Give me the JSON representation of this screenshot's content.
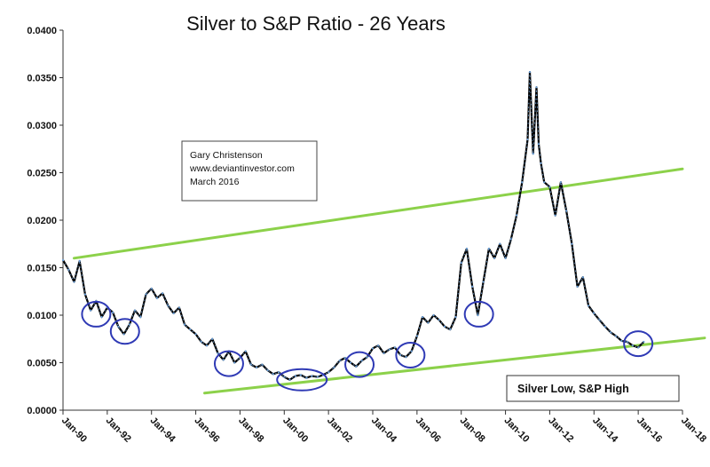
{
  "colors": {
    "series_line": "#000000",
    "series_highlight": "#6a9fd8",
    "trend_line": "#8cd14a",
    "circle": "#2f3ab5",
    "axis": "#333333"
  },
  "chart_data": {
    "type": "line",
    "title": "Silver to S&P Ratio - 26 Years",
    "xlabel": "",
    "ylabel": "",
    "ylim": [
      0,
      0.04
    ],
    "xlim": [
      1990,
      2018
    ],
    "grid": false,
    "legend": "none",
    "y_ticks": [
      "0.0000",
      "0.0050",
      "0.0100",
      "0.0150",
      "0.0200",
      "0.0250",
      "0.0300",
      "0.0350",
      "0.0400"
    ],
    "x_ticks": [
      {
        "label": "Jan-90",
        "x": 1990
      },
      {
        "label": "Jan-92",
        "x": 1992
      },
      {
        "label": "Jan-94",
        "x": 1994
      },
      {
        "label": "Jan-96",
        "x": 1996
      },
      {
        "label": "Jan-98",
        "x": 1998
      },
      {
        "label": "Jan-00",
        "x": 2000
      },
      {
        "label": "Jan-02",
        "x": 2002
      },
      {
        "label": "Jan-04",
        "x": 2004
      },
      {
        "label": "Jan-06",
        "x": 2006
      },
      {
        "label": "Jan-08",
        "x": 2008
      },
      {
        "label": "Jan-10",
        "x": 2010
      },
      {
        "label": "Jan-12",
        "x": 2012
      },
      {
        "label": "Jan-14",
        "x": 2014
      },
      {
        "label": "Jan-16",
        "x": 2016
      },
      {
        "label": "Jan-18",
        "x": 2018
      }
    ],
    "series": [
      {
        "name": "Silver to S&P Ratio",
        "x": [
          1990.0,
          1990.25,
          1990.5,
          1990.75,
          1991.0,
          1991.25,
          1991.5,
          1991.75,
          1992.0,
          1992.25,
          1992.5,
          1992.75,
          1993.0,
          1993.25,
          1993.5,
          1993.75,
          1994.0,
          1994.25,
          1994.5,
          1994.75,
          1995.0,
          1995.25,
          1995.5,
          1995.75,
          1996.0,
          1996.25,
          1996.5,
          1996.75,
          1997.0,
          1997.25,
          1997.5,
          1997.75,
          1998.0,
          1998.25,
          1998.5,
          1998.75,
          1999.0,
          1999.25,
          1999.5,
          1999.75,
          2000.0,
          2000.25,
          2000.5,
          2000.75,
          2001.0,
          2001.25,
          2001.5,
          2001.75,
          2002.0,
          2002.25,
          2002.5,
          2002.75,
          2003.0,
          2003.25,
          2003.5,
          2003.75,
          2004.0,
          2004.25,
          2004.5,
          2004.75,
          2005.0,
          2005.25,
          2005.5,
          2005.75,
          2006.0,
          2006.25,
          2006.5,
          2006.75,
          2007.0,
          2007.25,
          2007.5,
          2007.75,
          2008.0,
          2008.25,
          2008.5,
          2008.75,
          2009.0,
          2009.25,
          2009.5,
          2009.75,
          2010.0,
          2010.25,
          2010.5,
          2010.75,
          2011.0,
          2011.1,
          2011.25,
          2011.4,
          2011.5,
          2011.6,
          2011.75,
          2012.0,
          2012.25,
          2012.5,
          2012.75,
          2013.0,
          2013.25,
          2013.5,
          2013.75,
          2014.0,
          2014.25,
          2014.5,
          2014.75,
          2015.0,
          2015.25,
          2015.5,
          2015.75,
          2016.0,
          2016.25
        ],
        "values": [
          0.0158,
          0.0148,
          0.0135,
          0.0157,
          0.0122,
          0.0105,
          0.0115,
          0.0098,
          0.0108,
          0.0103,
          0.0088,
          0.008,
          0.009,
          0.0105,
          0.0098,
          0.0122,
          0.0128,
          0.0118,
          0.0123,
          0.011,
          0.0102,
          0.0108,
          0.009,
          0.0085,
          0.008,
          0.0072,
          0.0068,
          0.0075,
          0.006,
          0.0053,
          0.0062,
          0.005,
          0.0055,
          0.0062,
          0.0048,
          0.0045,
          0.0048,
          0.0042,
          0.0038,
          0.004,
          0.0035,
          0.0032,
          0.0036,
          0.0037,
          0.0034,
          0.0036,
          0.0035,
          0.0037,
          0.004,
          0.0045,
          0.0052,
          0.0055,
          0.005,
          0.0046,
          0.0052,
          0.0056,
          0.0065,
          0.0068,
          0.006,
          0.0064,
          0.0066,
          0.0058,
          0.0056,
          0.0062,
          0.0078,
          0.0098,
          0.0092,
          0.01,
          0.0095,
          0.0088,
          0.0085,
          0.0098,
          0.0155,
          0.017,
          0.013,
          0.01,
          0.0135,
          0.017,
          0.016,
          0.0175,
          0.016,
          0.018,
          0.0205,
          0.024,
          0.0285,
          0.0356,
          0.027,
          0.034,
          0.028,
          0.026,
          0.024,
          0.0235,
          0.0205,
          0.024,
          0.021,
          0.0175,
          0.013,
          0.014,
          0.011,
          0.0102,
          0.0095,
          0.0088,
          0.0082,
          0.0078,
          0.0073,
          0.0072,
          0.0068,
          0.0066,
          0.0072
        ]
      }
    ],
    "trend_lines": [
      {
        "name": "upper-trend",
        "x": [
          1990.5,
          2018.0
        ],
        "y": [
          0.016,
          0.0254
        ]
      },
      {
        "name": "lower-trend",
        "x": [
          1996.4,
          2019.0
        ],
        "y": [
          0.0018,
          0.0076
        ]
      }
    ],
    "circled_lows": [
      {
        "x": 1991.5,
        "y": 0.0101
      },
      {
        "x": 1992.8,
        "y": 0.0083
      },
      {
        "x": 1997.5,
        "y": 0.0049
      },
      {
        "x": 2000.8,
        "y": 0.0032
      },
      {
        "x": 2003.4,
        "y": 0.0048
      },
      {
        "x": 2005.7,
        "y": 0.0058
      },
      {
        "x": 2008.8,
        "y": 0.0101
      },
      {
        "x": 2016.0,
        "y": 0.007
      }
    ],
    "annotations": {
      "author": "Gary Christenson",
      "website": "www.deviantinvestor.com",
      "date": "March 2016",
      "callout": "Silver Low, S&P High"
    }
  }
}
